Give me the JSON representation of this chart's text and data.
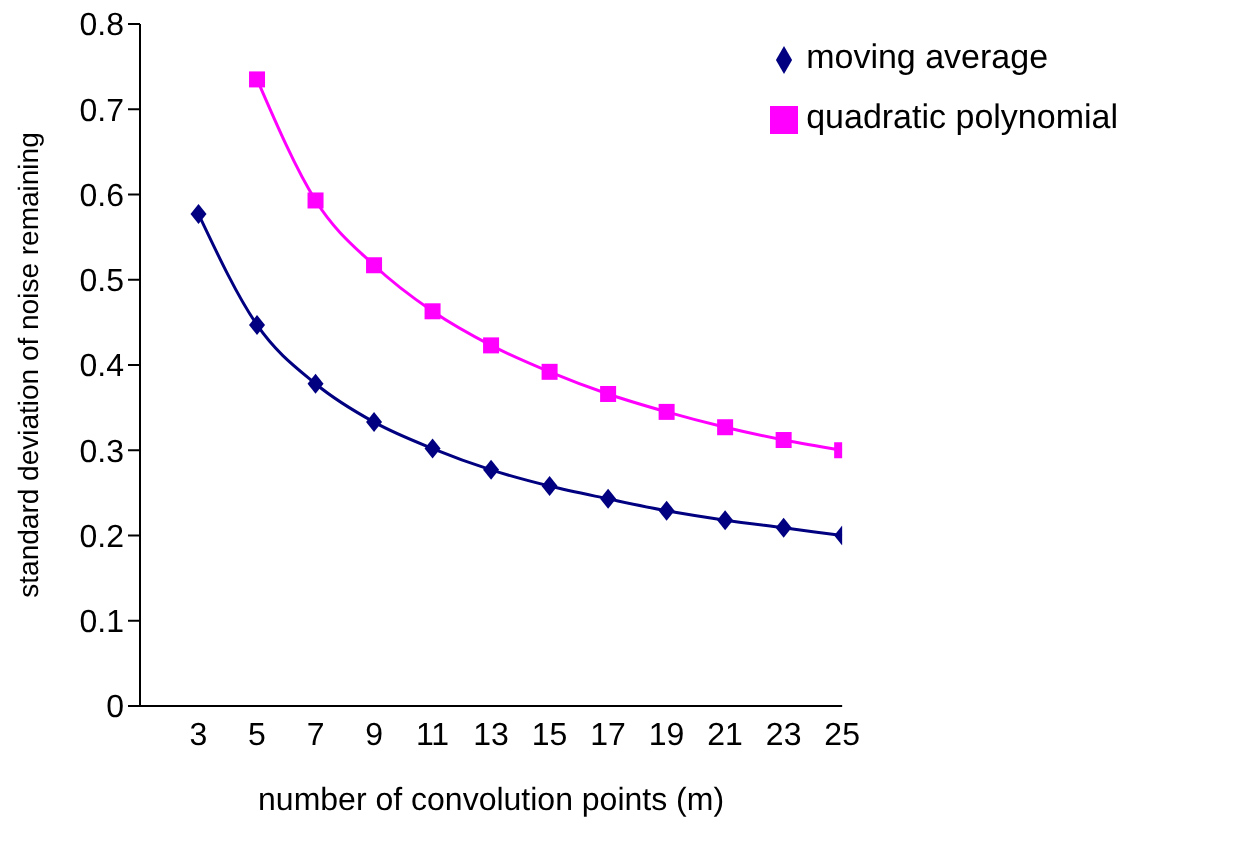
{
  "chart_data": {
    "type": "line",
    "xlabel": "number of convolution points (m)",
    "ylabel": "standard deviation of noise remaining",
    "x": [
      3,
      5,
      7,
      9,
      11,
      13,
      15,
      17,
      19,
      21,
      23,
      25
    ],
    "series": [
      {
        "name": "moving average",
        "color": "#000080",
        "marker": "diamond",
        "values": [
          0.577,
          0.447,
          0.378,
          0.333,
          0.302,
          0.277,
          0.258,
          0.243,
          0.229,
          0.218,
          0.209,
          0.2
        ]
      },
      {
        "name": "quadratic polynomial",
        "color": "#ff00ff",
        "marker": "square",
        "values": [
          null,
          0.735,
          0.593,
          0.517,
          0.463,
          0.423,
          0.392,
          0.366,
          0.345,
          0.327,
          0.312,
          0.3
        ]
      }
    ],
    "xlim": [
      1,
      25
    ],
    "xticks": [
      3,
      5,
      7,
      9,
      11,
      13,
      15,
      17,
      19,
      21,
      23,
      25
    ],
    "ylim": [
      0,
      0.8
    ],
    "yticks": [
      0,
      0.1,
      0.2,
      0.3,
      0.4,
      0.5,
      0.6,
      0.7,
      0.8
    ],
    "grid": false,
    "legend": "top right",
    "line_style": "solid"
  }
}
